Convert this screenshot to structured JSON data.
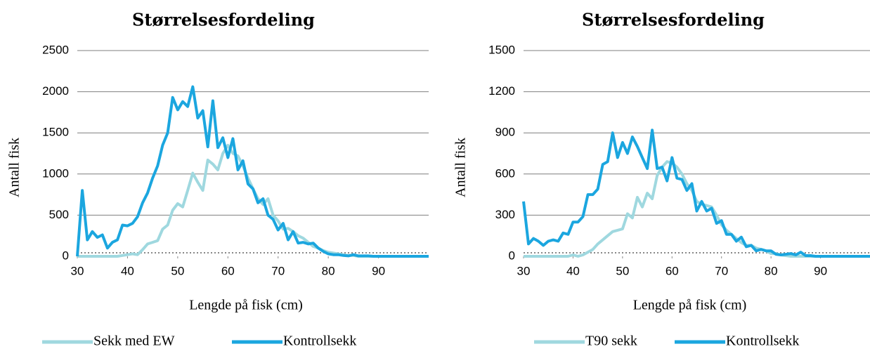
{
  "chart_data": [
    {
      "type": "line",
      "title": "Størrelsesfordeling",
      "x_label": "Lengde på fisk (cm)",
      "y_label": "Antall fisk",
      "x": [
        30,
        31,
        32,
        33,
        34,
        35,
        36,
        37,
        38,
        39,
        40,
        41,
        42,
        43,
        44,
        45,
        46,
        47,
        48,
        49,
        50,
        51,
        52,
        53,
        54,
        55,
        56,
        57,
        58,
        59,
        60,
        61,
        62,
        63,
        64,
        65,
        66,
        67,
        68,
        69,
        70,
        71,
        72,
        73,
        74,
        75,
        76,
        77,
        78,
        79,
        80,
        81,
        82,
        83,
        84,
        85,
        86,
        87,
        88,
        89,
        90,
        91,
        92,
        93,
        94,
        95,
        96,
        97,
        98,
        99,
        100
      ],
      "xlim": [
        30,
        100
      ],
      "xticks": [
        30,
        40,
        50,
        60,
        70,
        80,
        90
      ],
      "ylim": [
        0,
        2500
      ],
      "yticks": [
        0,
        500,
        1000,
        1500,
        2000,
        2500
      ],
      "grid": true,
      "series": [
        {
          "name": "Sekk med EW",
          "color": "#9fd8df",
          "values": [
            0,
            0,
            0,
            0,
            0,
            0,
            0,
            0,
            0,
            10,
            20,
            30,
            20,
            80,
            150,
            170,
            190,
            330,
            380,
            560,
            640,
            600,
            800,
            1010,
            900,
            800,
            1170,
            1120,
            1050,
            1250,
            1350,
            1250,
            1220,
            1100,
            950,
            820,
            700,
            630,
            700,
            500,
            430,
            330,
            340,
            300,
            250,
            220,
            170,
            120,
            100,
            70,
            50,
            40,
            30,
            20,
            10,
            10,
            0,
            0,
            0,
            0,
            0,
            0,
            0,
            0,
            0,
            0,
            0,
            0,
            0,
            0,
            0
          ]
        },
        {
          "name": "Kontrollsekk",
          "color": "#1ba6df",
          "values": [
            0,
            800,
            200,
            300,
            230,
            260,
            100,
            170,
            200,
            380,
            370,
            400,
            480,
            650,
            770,
            950,
            1100,
            1350,
            1500,
            1930,
            1780,
            1880,
            1820,
            2060,
            1680,
            1770,
            1330,
            1890,
            1320,
            1440,
            1200,
            1430,
            1050,
            1160,
            880,
            820,
            650,
            700,
            500,
            450,
            320,
            400,
            200,
            300,
            160,
            170,
            150,
            160,
            100,
            60,
            30,
            20,
            20,
            10,
            5,
            20,
            5,
            5,
            5,
            0,
            0,
            0,
            0,
            0,
            0,
            0,
            0,
            0,
            0,
            0,
            0
          ]
        }
      ]
    },
    {
      "type": "line",
      "title": "Størrelsesfordeling",
      "x_label": "Lengde på fisk (cm)",
      "y_label": "Antall fisk",
      "x": [
        30,
        31,
        32,
        33,
        34,
        35,
        36,
        37,
        38,
        39,
        40,
        41,
        42,
        43,
        44,
        45,
        46,
        47,
        48,
        49,
        50,
        51,
        52,
        53,
        54,
        55,
        56,
        57,
        58,
        59,
        60,
        61,
        62,
        63,
        64,
        65,
        66,
        67,
        68,
        69,
        70,
        71,
        72,
        73,
        74,
        75,
        76,
        77,
        78,
        79,
        80,
        81,
        82,
        83,
        84,
        85,
        86,
        87,
        88,
        89,
        90,
        91,
        92,
        93,
        94,
        95,
        96,
        97,
        98,
        99,
        100
      ],
      "xlim": [
        30,
        100
      ],
      "xticks": [
        30,
        40,
        50,
        60,
        70,
        80,
        90
      ],
      "ylim": [
        0,
        1500
      ],
      "yticks": [
        0,
        300,
        600,
        900,
        1200,
        1500
      ],
      "grid": true,
      "series": [
        {
          "name": "T90 sekk",
          "color": "#9fd8df",
          "values": [
            0,
            0,
            0,
            0,
            0,
            0,
            0,
            0,
            0,
            0,
            10,
            0,
            10,
            30,
            50,
            90,
            120,
            150,
            180,
            190,
            200,
            310,
            280,
            430,
            360,
            460,
            420,
            590,
            650,
            690,
            680,
            650,
            600,
            530,
            480,
            400,
            380,
            370,
            360,
            300,
            230,
            190,
            160,
            130,
            100,
            80,
            80,
            60,
            50,
            40,
            20,
            20,
            10,
            5,
            0,
            0,
            0,
            0,
            0,
            0,
            0,
            0,
            0,
            0,
            0,
            0,
            0,
            0,
            0,
            0,
            0
          ]
        },
        {
          "name": "Kontrollsekk",
          "color": "#1ba6df",
          "values": [
            400,
            90,
            130,
            110,
            80,
            110,
            120,
            110,
            170,
            160,
            250,
            250,
            290,
            450,
            450,
            490,
            670,
            690,
            900,
            720,
            830,
            750,
            870,
            800,
            720,
            640,
            920,
            640,
            650,
            550,
            720,
            570,
            560,
            480,
            530,
            330,
            400,
            330,
            350,
            240,
            260,
            160,
            160,
            110,
            140,
            70,
            80,
            40,
            50,
            40,
            40,
            15,
            10,
            15,
            20,
            10,
            30,
            5,
            5,
            0,
            0,
            0,
            0,
            0,
            0,
            0,
            0,
            0,
            0,
            0,
            0
          ]
        }
      ]
    }
  ]
}
